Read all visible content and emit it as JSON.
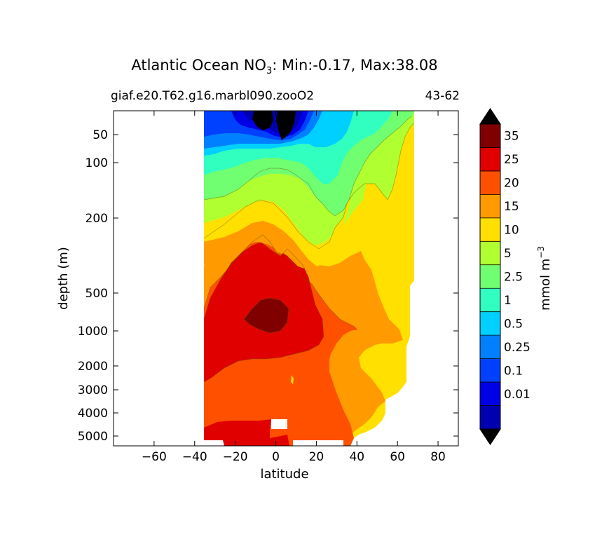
{
  "chart_data": {
    "type": "heatmap",
    "title_main": "Atlantic Ocean NO",
    "title_sub": "3",
    "title_rest": ": Min:-0.17, Max:38.08",
    "subtitle_left": "giaf.e20.T62.g16.marbl090.zooO2",
    "subtitle_right": "43-62",
    "xlabel": "latitude",
    "ylabel": "depth (m)",
    "x_ticks": [
      -60,
      -40,
      -20,
      0,
      20,
      40,
      60,
      80
    ],
    "x_tick_labels": [
      "−60",
      "−40",
      "−20",
      "0",
      "20",
      "40",
      "60",
      "80"
    ],
    "xlim": [
      -80,
      90
    ],
    "y_ticks": [
      50,
      100,
      200,
      500,
      1000,
      2000,
      3000,
      4000,
      5000
    ],
    "y_tick_labels": [
      "50",
      "100",
      "200",
      "500",
      "1000",
      "2000",
      "3000",
      "4000",
      "5000"
    ],
    "y_scale": "nonlinear-depth (inverted, surface at top)",
    "colorbar": {
      "label_main": "mmol m",
      "label_sup": "−3",
      "levels": [
        "35",
        "25",
        "20",
        "15",
        "10",
        "5",
        "2.5",
        "1",
        "0.5",
        "0.25",
        "0.1",
        "0.01"
      ],
      "colors": [
        "#0000b0",
        "#0000e6",
        "#0040ff",
        "#0080ff",
        "#00d0ff",
        "#30ffc0",
        "#70ff70",
        "#b0ff30",
        "#ffe000",
        "#ff9a00",
        "#ff5000",
        "#e00000",
        "#800000"
      ],
      "extend": "both"
    },
    "data_extent_latitude": [
      -34,
      68
    ]
  }
}
